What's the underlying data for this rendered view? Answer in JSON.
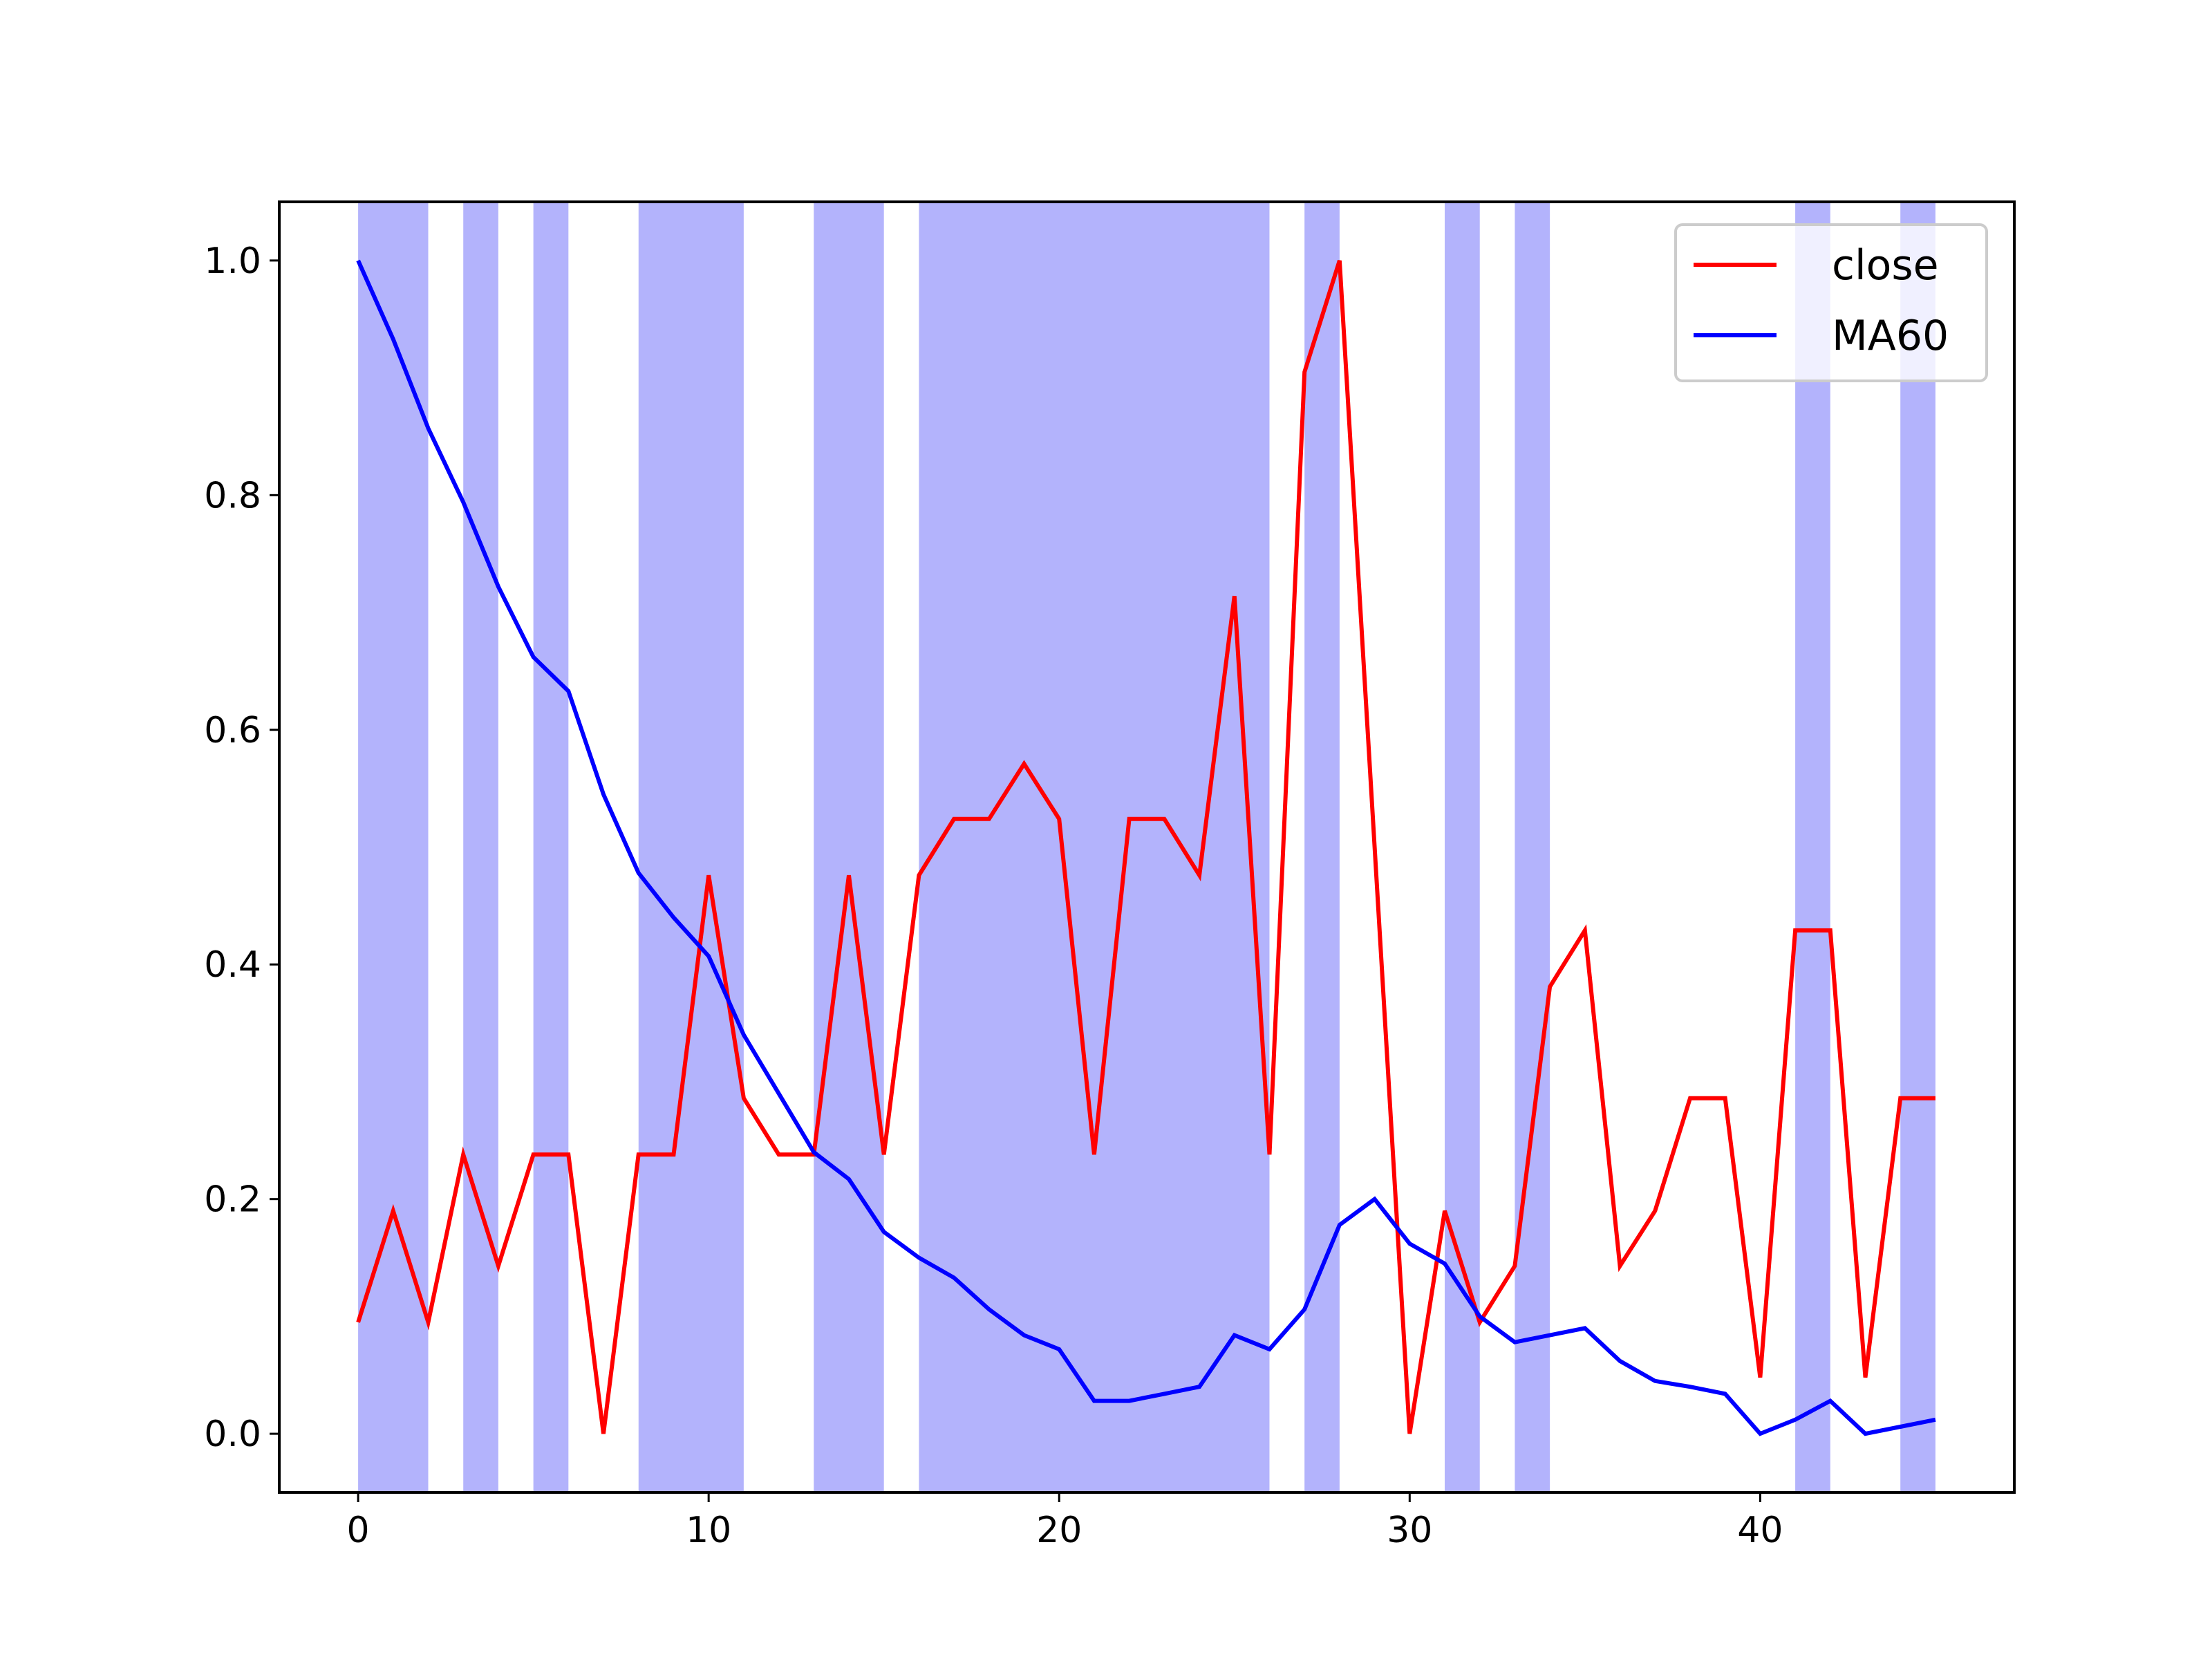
{
  "chart_data": {
    "type": "line",
    "title": "",
    "xlabel": "",
    "ylabel": "",
    "xlim": [
      -2.25,
      47.25
    ],
    "ylim": [
      -0.05,
      1.05
    ],
    "xticks": [
      0,
      10,
      20,
      30,
      40
    ],
    "yticks": [
      0.0,
      0.2,
      0.4,
      0.6,
      0.8,
      1.0
    ],
    "xtick_labels": [
      "0",
      "10",
      "20",
      "30",
      "40"
    ],
    "ytick_labels": [
      "0.0",
      "0.2",
      "0.4",
      "0.6",
      "0.8",
      "1.0"
    ],
    "grid": false,
    "legend_position": "top-right",
    "shaded_spans": [
      [
        0,
        2
      ],
      [
        3,
        4
      ],
      [
        5,
        6
      ],
      [
        8,
        11
      ],
      [
        13,
        15
      ],
      [
        16,
        26
      ],
      [
        27,
        28
      ],
      [
        31,
        32
      ],
      [
        33,
        34
      ],
      [
        41,
        42
      ],
      [
        44,
        45
      ]
    ],
    "shade_color": "#b3b3fc",
    "series": [
      {
        "name": "close",
        "color": "#ff0000",
        "x": [
          0,
          1,
          2,
          3,
          4,
          5,
          6,
          7,
          8,
          9,
          10,
          11,
          12,
          13,
          14,
          15,
          16,
          17,
          18,
          19,
          20,
          21,
          22,
          23,
          24,
          25,
          26,
          27,
          28,
          29,
          30,
          31,
          32,
          33,
          34,
          35,
          36,
          37,
          38,
          39,
          40,
          41,
          42,
          43,
          44,
          45
        ],
        "values": [
          0.095,
          0.19,
          0.095,
          0.238,
          0.143,
          0.238,
          0.238,
          0.0,
          0.238,
          0.238,
          0.476,
          0.286,
          0.238,
          0.238,
          0.476,
          0.238,
          0.476,
          0.524,
          0.524,
          0.571,
          0.524,
          0.238,
          0.524,
          0.524,
          0.476,
          0.714,
          0.238,
          0.905,
          1.0,
          0.5,
          0.0,
          0.19,
          0.095,
          0.143,
          0.381,
          0.429,
          0.143,
          0.19,
          0.286,
          0.286,
          0.048,
          0.429,
          0.429,
          0.048,
          0.286,
          0.286
        ]
      },
      {
        "name": "MA60",
        "color": "#0000ff",
        "x": [
          0,
          1,
          2,
          3,
          4,
          5,
          6,
          7,
          8,
          9,
          10,
          11,
          12,
          13,
          14,
          15,
          16,
          17,
          18,
          19,
          20,
          21,
          22,
          23,
          24,
          25,
          26,
          27,
          28,
          29,
          30,
          31,
          32,
          33,
          34,
          35,
          36,
          37,
          38,
          39,
          40,
          41,
          42,
          43,
          44,
          45
        ],
        "values": [
          1.0,
          0.933,
          0.857,
          0.794,
          0.722,
          0.662,
          0.633,
          0.545,
          0.478,
          0.44,
          0.407,
          0.34,
          0.29,
          0.24,
          0.217,
          0.172,
          0.15,
          0.133,
          0.106,
          0.084,
          0.072,
          0.028,
          0.028,
          0.034,
          0.04,
          0.084,
          0.072,
          0.106,
          0.178,
          0.2,
          0.162,
          0.145,
          0.1,
          0.078,
          0.084,
          0.09,
          0.062,
          0.045,
          0.04,
          0.034,
          0.0,
          0.012,
          0.028,
          0.0,
          0.006,
          0.012
        ]
      }
    ]
  }
}
